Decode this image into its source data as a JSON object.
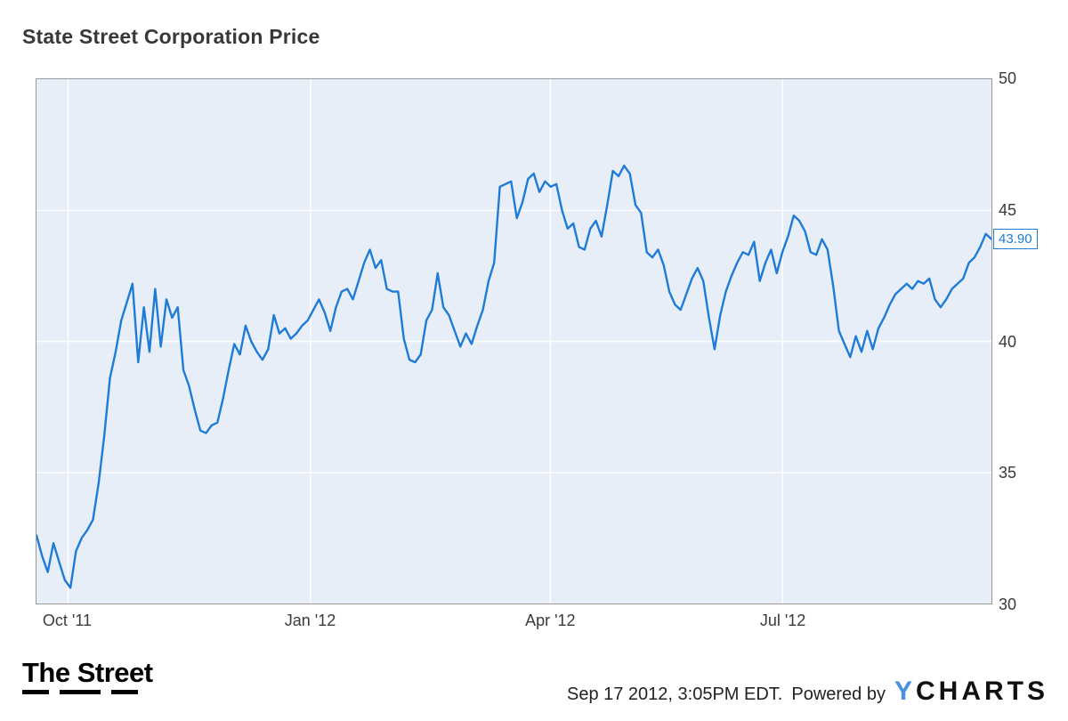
{
  "title": "State Street Corporation Price",
  "last_price_label": "43.90",
  "colors": {
    "line": "#1e7bd7",
    "plot_bg": "#e8eef8",
    "grid": "#ffffff",
    "axis_text": "#3a3a3a",
    "ycharts_blue": "#4a90e2"
  },
  "footer": {
    "timestamp": "Sep 17 2012, 3:05PM EDT.",
    "powered_by": "Powered by",
    "thestreet_logo": "The Street",
    "ycharts_y": "Y",
    "ycharts_rest": "CHARTS"
  },
  "chart_data": {
    "type": "line",
    "title": "State Street Corporation Price",
    "series_name": "State Street Corporation Price",
    "ylim": [
      30,
      50
    ],
    "y_ticks": [
      30,
      35,
      40,
      45,
      50
    ],
    "x_ticks": [
      {
        "label": "Oct '11",
        "pos": 0.033
      },
      {
        "label": "Jan '12",
        "pos": 0.287
      },
      {
        "label": "Apr '12",
        "pos": 0.538
      },
      {
        "label": "Jul '12",
        "pos": 0.781
      }
    ],
    "x_range": [
      "Oct 2011",
      "Sep 17 2012"
    ],
    "last_value": 43.9,
    "grid": true,
    "legend": "none",
    "values": [
      32.6,
      31.8,
      31.2,
      32.3,
      31.6,
      30.9,
      30.6,
      32.0,
      32.5,
      32.8,
      33.2,
      34.6,
      36.4,
      38.6,
      39.6,
      40.8,
      41.5,
      42.2,
      39.2,
      41.3,
      39.6,
      42.0,
      39.8,
      41.6,
      40.9,
      41.3,
      38.9,
      38.3,
      37.4,
      36.6,
      36.5,
      36.8,
      36.9,
      37.8,
      38.9,
      39.9,
      39.5,
      40.6,
      40.0,
      39.6,
      39.3,
      39.7,
      41.0,
      40.3,
      40.5,
      40.1,
      40.3,
      40.6,
      40.8,
      41.2,
      41.6,
      41.1,
      40.4,
      41.3,
      41.9,
      42.0,
      41.6,
      42.3,
      43.0,
      43.5,
      42.8,
      43.1,
      42.0,
      41.9,
      41.9,
      40.1,
      39.3,
      39.2,
      39.5,
      40.8,
      41.2,
      42.6,
      41.3,
      41.0,
      40.4,
      39.8,
      40.3,
      39.9,
      40.6,
      41.2,
      42.3,
      43.0,
      45.9,
      46.0,
      46.1,
      44.7,
      45.3,
      46.2,
      46.4,
      45.7,
      46.1,
      45.9,
      46.0,
      45.0,
      44.3,
      44.5,
      43.6,
      43.5,
      44.3,
      44.6,
      44.0,
      45.2,
      46.5,
      46.3,
      46.7,
      46.4,
      45.2,
      44.9,
      43.4,
      43.2,
      43.5,
      42.9,
      41.9,
      41.4,
      41.2,
      41.8,
      42.4,
      42.8,
      42.3,
      40.9,
      39.7,
      41.0,
      41.9,
      42.5,
      43.0,
      43.4,
      43.3,
      43.8,
      42.3,
      43.0,
      43.5,
      42.6,
      43.4,
      44.0,
      44.8,
      44.6,
      44.2,
      43.4,
      43.3,
      43.9,
      43.5,
      42.1,
      40.4,
      39.9,
      39.4,
      40.2,
      39.6,
      40.4,
      39.7,
      40.5,
      40.9,
      41.4,
      41.8,
      42.0,
      42.2,
      42.0,
      42.3,
      42.2,
      42.4,
      41.6,
      41.3,
      41.6,
      42.0,
      42.2,
      42.4,
      43.0,
      43.2,
      43.6,
      44.1,
      43.9
    ]
  }
}
